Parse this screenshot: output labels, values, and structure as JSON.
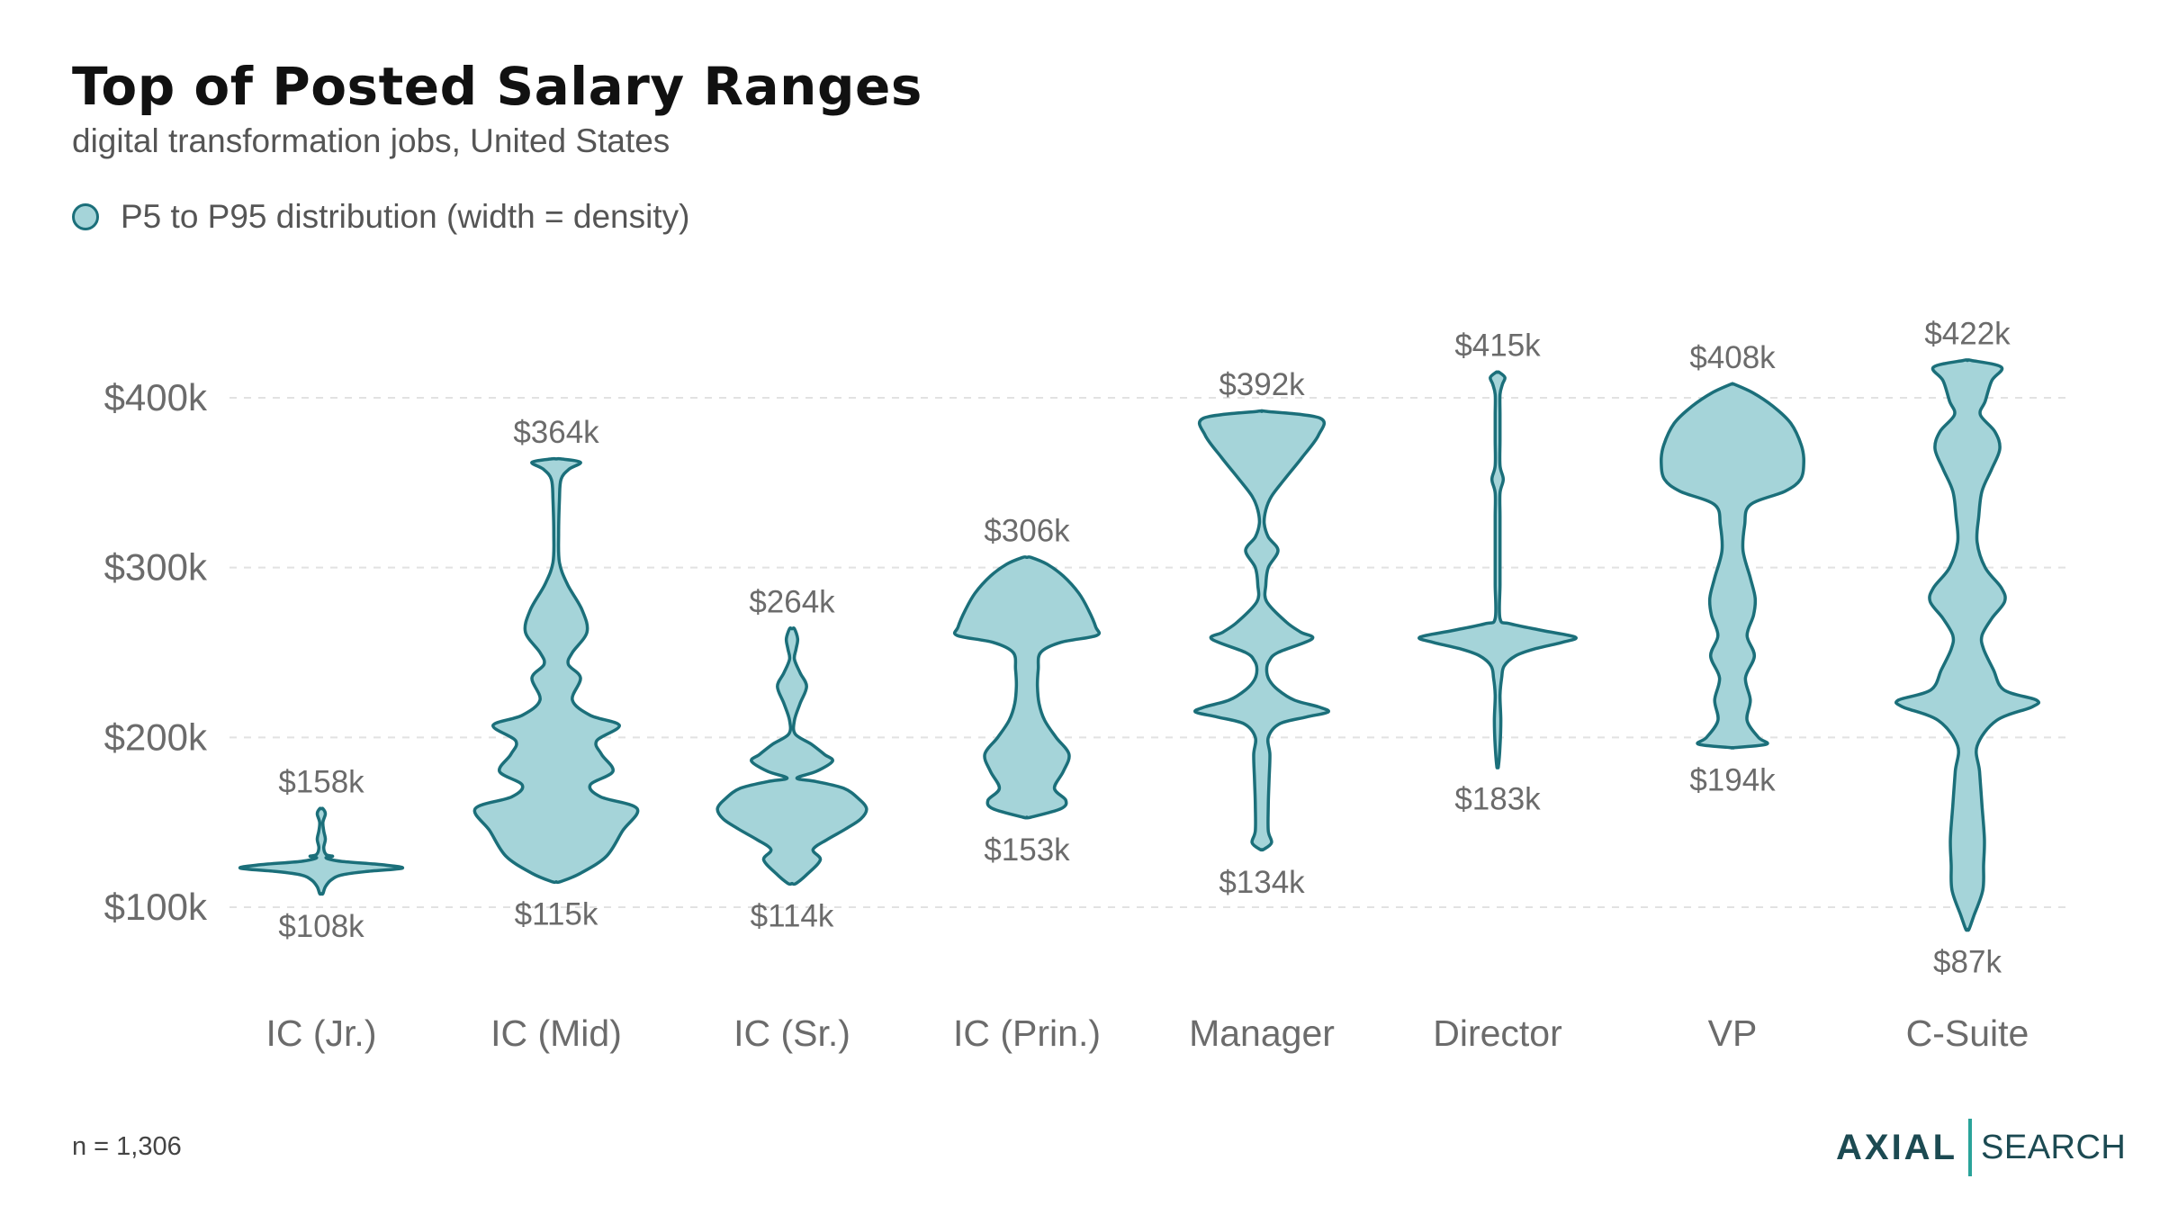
{
  "header": {
    "title": "Top of Posted Salary Ranges",
    "subtitle": "digital transformation jobs, United States",
    "legend_label": "P5 to P95 distribution (width = density)"
  },
  "footer": {
    "sample_size": "n = 1,306",
    "logo_left": "AXIAL",
    "logo_right": "SEARCH"
  },
  "colors": {
    "fill": "#a5d4d9",
    "stroke": "#1b6f7a",
    "grid": "#e2e2e2",
    "label": "#6b6b6b"
  },
  "chart_data": {
    "type": "violin",
    "title": "Top of Posted Salary Ranges",
    "subtitle": "digital transformation jobs, United States",
    "xlabel": "",
    "ylabel": "",
    "y_ticks": [
      "$100k",
      "$200k",
      "$300k",
      "$400k"
    ],
    "y_tick_values": [
      100,
      200,
      300,
      400
    ],
    "ylim": [
      65,
      455
    ],
    "grid": true,
    "legend": "top-left",
    "series": [
      {
        "category": "IC (Jr.)",
        "min": 108,
        "max": 158,
        "min_label": "$108k",
        "max_label": "$158k",
        "profile": [
          [
            108,
            0.02
          ],
          [
            112,
            0.05
          ],
          [
            116,
            0.12
          ],
          [
            119,
            0.25
          ],
          [
            121,
            0.55
          ],
          [
            123,
            1.0
          ],
          [
            125,
            0.75
          ],
          [
            127,
            0.25
          ],
          [
            129,
            0.06
          ],
          [
            130,
            0.14
          ],
          [
            131,
            0.06
          ],
          [
            135,
            0.03
          ],
          [
            140,
            0.05
          ],
          [
            145,
            0.03
          ],
          [
            150,
            0.02
          ],
          [
            155,
            0.05
          ],
          [
            158,
            0.02
          ]
        ]
      },
      {
        "category": "IC (Mid)",
        "min": 115,
        "max": 364,
        "min_label": "$115k",
        "max_label": "$364k",
        "profile": [
          [
            115,
            0.05
          ],
          [
            120,
            0.3
          ],
          [
            130,
            0.62
          ],
          [
            145,
            0.82
          ],
          [
            158,
            1.0
          ],
          [
            165,
            0.55
          ],
          [
            172,
            0.42
          ],
          [
            180,
            0.7
          ],
          [
            190,
            0.56
          ],
          [
            198,
            0.5
          ],
          [
            207,
            0.78
          ],
          [
            213,
            0.42
          ],
          [
            222,
            0.2
          ],
          [
            235,
            0.3
          ],
          [
            243,
            0.15
          ],
          [
            250,
            0.2
          ],
          [
            262,
            0.38
          ],
          [
            275,
            0.32
          ],
          [
            290,
            0.14
          ],
          [
            303,
            0.04
          ],
          [
            320,
            0.03
          ],
          [
            340,
            0.04
          ],
          [
            352,
            0.06
          ],
          [
            358,
            0.16
          ],
          [
            362,
            0.3
          ],
          [
            364,
            0.06
          ]
        ]
      },
      {
        "category": "IC (Sr.)",
        "min": 114,
        "max": 264,
        "min_label": "$114k",
        "max_label": "$264k",
        "profile": [
          [
            114,
            0.05
          ],
          [
            120,
            0.2
          ],
          [
            128,
            0.35
          ],
          [
            134,
            0.26
          ],
          [
            140,
            0.44
          ],
          [
            146,
            0.66
          ],
          [
            152,
            0.85
          ],
          [
            158,
            0.92
          ],
          [
            164,
            0.82
          ],
          [
            170,
            0.64
          ],
          [
            174,
            0.3
          ],
          [
            176,
            0.06
          ],
          [
            180,
            0.3
          ],
          [
            186,
            0.5
          ],
          [
            190,
            0.4
          ],
          [
            196,
            0.24
          ],
          [
            202,
            0.04
          ],
          [
            210,
            0.03
          ],
          [
            220,
            0.1
          ],
          [
            230,
            0.18
          ],
          [
            238,
            0.1
          ],
          [
            246,
            0.03
          ],
          [
            252,
            0.05
          ],
          [
            258,
            0.07
          ],
          [
            264,
            0.03
          ]
        ]
      },
      {
        "category": "IC (Prin.)",
        "min": 153,
        "max": 306,
        "min_label": "$153k",
        "max_label": "$306k",
        "profile": [
          [
            153,
            0.05
          ],
          [
            158,
            0.42
          ],
          [
            163,
            0.48
          ],
          [
            170,
            0.34
          ],
          [
            180,
            0.45
          ],
          [
            190,
            0.52
          ],
          [
            200,
            0.36
          ],
          [
            210,
            0.22
          ],
          [
            220,
            0.15
          ],
          [
            230,
            0.13
          ],
          [
            240,
            0.14
          ],
          [
            250,
            0.17
          ],
          [
            256,
            0.42
          ],
          [
            260,
            0.86
          ],
          [
            265,
            0.85
          ],
          [
            275,
            0.76
          ],
          [
            285,
            0.64
          ],
          [
            295,
            0.45
          ],
          [
            302,
            0.25
          ],
          [
            306,
            0.05
          ]
        ]
      },
      {
        "category": "Manager",
        "min": 134,
        "max": 392,
        "min_label": "$134k",
        "max_label": "$392k",
        "profile": [
          [
            134,
            0.02
          ],
          [
            138,
            0.12
          ],
          [
            145,
            0.08
          ],
          [
            160,
            0.08
          ],
          [
            175,
            0.09
          ],
          [
            190,
            0.1
          ],
          [
            200,
            0.08
          ],
          [
            208,
            0.22
          ],
          [
            212,
            0.55
          ],
          [
            215,
            0.82
          ],
          [
            218,
            0.7
          ],
          [
            222,
            0.4
          ],
          [
            228,
            0.2
          ],
          [
            234,
            0.09
          ],
          [
            240,
            0.06
          ],
          [
            245,
            0.09
          ],
          [
            250,
            0.2
          ],
          [
            258,
            0.62
          ],
          [
            262,
            0.48
          ],
          [
            268,
            0.3
          ],
          [
            280,
            0.06
          ],
          [
            290,
            0.05
          ],
          [
            300,
            0.08
          ],
          [
            310,
            0.2
          ],
          [
            318,
            0.08
          ],
          [
            326,
            0.03
          ],
          [
            334,
            0.05
          ],
          [
            342,
            0.12
          ],
          [
            352,
            0.28
          ],
          [
            365,
            0.5
          ],
          [
            378,
            0.7
          ],
          [
            388,
            0.72
          ],
          [
            392,
            0.06
          ]
        ]
      },
      {
        "category": "Director",
        "min": 183,
        "max": 415,
        "min_label": "$183k",
        "max_label": "$415k",
        "profile": [
          [
            183,
            0.01
          ],
          [
            195,
            0.03
          ],
          [
            210,
            0.04
          ],
          [
            225,
            0.03
          ],
          [
            235,
            0.05
          ],
          [
            242,
            0.08
          ],
          [
            248,
            0.22
          ],
          [
            252,
            0.45
          ],
          [
            256,
            0.8
          ],
          [
            259,
            0.96
          ],
          [
            263,
            0.55
          ],
          [
            267,
            0.15
          ],
          [
            270,
            0.03
          ],
          [
            290,
            0.03
          ],
          [
            310,
            0.03
          ],
          [
            330,
            0.03
          ],
          [
            344,
            0.03
          ],
          [
            352,
            0.07
          ],
          [
            360,
            0.03
          ],
          [
            375,
            0.03
          ],
          [
            390,
            0.03
          ],
          [
            402,
            0.03
          ],
          [
            408,
            0.06
          ],
          [
            412,
            0.09
          ],
          [
            415,
            0.02
          ]
        ]
      },
      {
        "category": "VP",
        "min": 194,
        "max": 408,
        "min_label": "$194k",
        "max_label": "$408k",
        "profile": [
          [
            194,
            0.02
          ],
          [
            196,
            0.42
          ],
          [
            200,
            0.32
          ],
          [
            210,
            0.18
          ],
          [
            222,
            0.22
          ],
          [
            235,
            0.16
          ],
          [
            248,
            0.27
          ],
          [
            260,
            0.18
          ],
          [
            272,
            0.26
          ],
          [
            282,
            0.28
          ],
          [
            294,
            0.22
          ],
          [
            310,
            0.13
          ],
          [
            325,
            0.15
          ],
          [
            337,
            0.22
          ],
          [
            345,
            0.65
          ],
          [
            352,
            0.84
          ],
          [
            362,
            0.88
          ],
          [
            372,
            0.85
          ],
          [
            385,
            0.72
          ],
          [
            395,
            0.5
          ],
          [
            403,
            0.25
          ],
          [
            408,
            0.02
          ]
        ]
      },
      {
        "category": "C-Suite",
        "min": 87,
        "max": 422,
        "min_label": "$87k",
        "max_label": "$422k",
        "profile": [
          [
            87,
            0.02
          ],
          [
            95,
            0.08
          ],
          [
            110,
            0.19
          ],
          [
            125,
            0.2
          ],
          [
            140,
            0.21
          ],
          [
            160,
            0.18
          ],
          [
            180,
            0.15
          ],
          [
            195,
            0.12
          ],
          [
            210,
            0.36
          ],
          [
            218,
            0.8
          ],
          [
            222,
            0.85
          ],
          [
            228,
            0.45
          ],
          [
            240,
            0.32
          ],
          [
            252,
            0.2
          ],
          [
            260,
            0.18
          ],
          [
            270,
            0.3
          ],
          [
            280,
            0.46
          ],
          [
            288,
            0.42
          ],
          [
            300,
            0.22
          ],
          [
            315,
            0.12
          ],
          [
            330,
            0.14
          ],
          [
            345,
            0.18
          ],
          [
            358,
            0.3
          ],
          [
            370,
            0.4
          ],
          [
            380,
            0.34
          ],
          [
            390,
            0.16
          ],
          [
            398,
            0.22
          ],
          [
            410,
            0.3
          ],
          [
            418,
            0.42
          ],
          [
            422,
            0.05
          ]
        ]
      }
    ]
  }
}
